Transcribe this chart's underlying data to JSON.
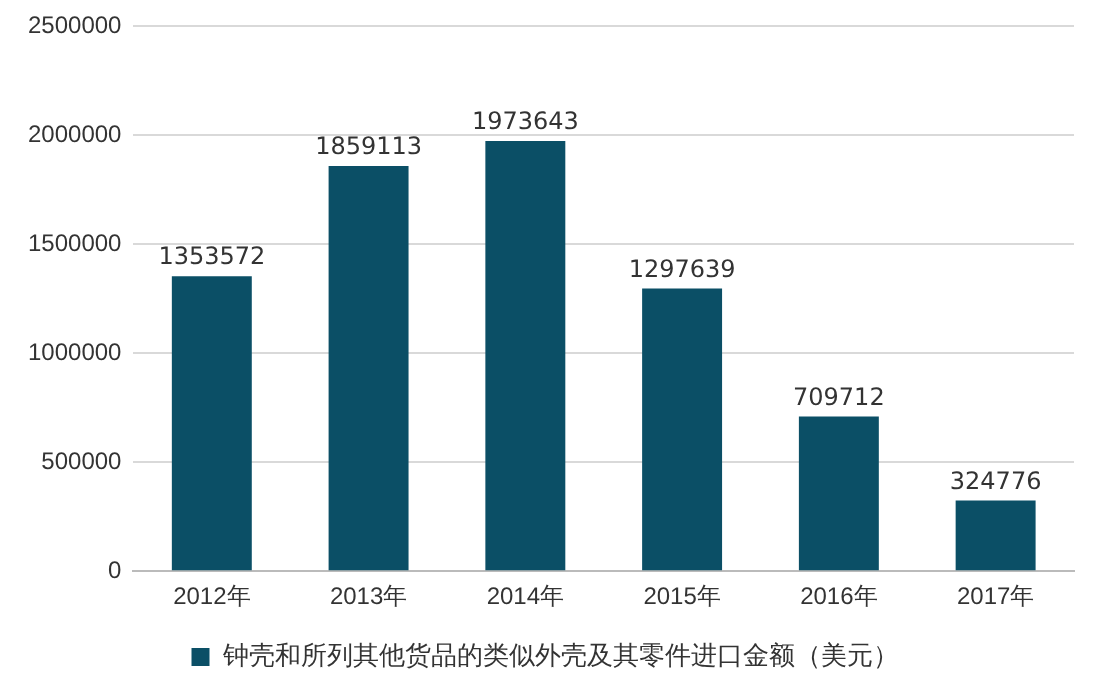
{
  "chart_data": {
    "type": "bar",
    "categories": [
      "2012年",
      "2013年",
      "2014年",
      "2015年",
      "2016年",
      "2017年"
    ],
    "series": [
      {
        "name": "钟壳和所列其他货品的类似外壳及其零件进口金额（美元）",
        "color": "#0b4f66",
        "values": [
          1353572,
          1859113,
          1973643,
          1297639,
          709712,
          324776
        ]
      }
    ],
    "ylim": [
      0,
      2500000
    ],
    "yticks": [
      0,
      500000,
      1000000,
      1500000,
      2000000,
      2500000
    ],
    "grid": "y",
    "legend": "bottom",
    "data_labels": true
  }
}
